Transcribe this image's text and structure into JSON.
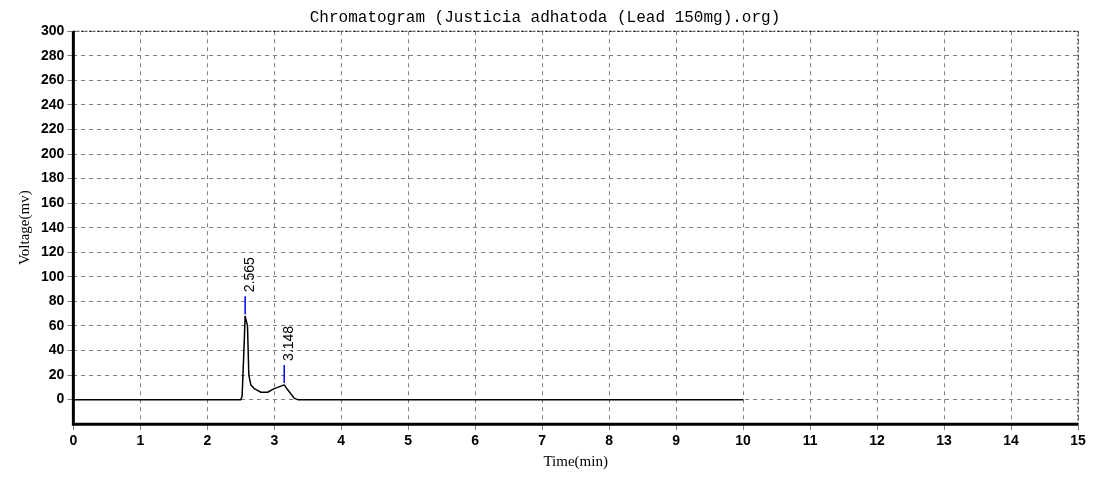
{
  "chart_data": {
    "type": "line",
    "title": "Chromatogram (Justicia adhatoda (Lead 150mg).org)",
    "xlabel": "Time(min)",
    "ylabel": "Voltage(mv)",
    "x": [
      0,
      2.45,
      2.5,
      2.52,
      2.55,
      2.565,
      2.6,
      2.62,
      2.65,
      2.7,
      2.8,
      2.9,
      3.0,
      3.1,
      3.148,
      3.2,
      3.3,
      3.35,
      10
    ],
    "series": [
      {
        "color": "#000000",
        "values": [
          0,
          0,
          0,
          3,
          45,
          68,
          60,
          20,
          12,
          9,
          6,
          6,
          9,
          11,
          12,
          8,
          1,
          0,
          0
        ]
      }
    ],
    "annotations": [
      {
        "text": "2.565",
        "x": 2.565,
        "y": 68
      },
      {
        "text": "3.148",
        "x": 3.148,
        "y": 12
      }
    ],
    "xlim": [
      0,
      15
    ],
    "xticks": [
      0,
      1,
      2,
      3,
      4,
      5,
      6,
      7,
      8,
      9,
      10,
      11,
      12,
      13,
      14,
      15
    ],
    "ylim": [
      -20,
      300
    ],
    "yticks": [
      0,
      20,
      40,
      60,
      80,
      100,
      120,
      140,
      160,
      180,
      200,
      220,
      240,
      260,
      280,
      300
    ],
    "grid": true,
    "legend": false,
    "marker": "none",
    "line_style": "solid"
  }
}
